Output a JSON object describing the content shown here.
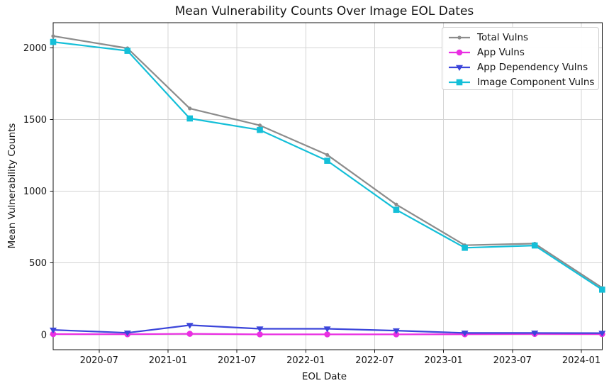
{
  "figure": {
    "title": "Mean Vulnerability Counts Over Image EOL Dates",
    "xlabel": "EOL Date",
    "ylabel": "Mean Vulnerability Counts"
  },
  "chart_data": {
    "type": "line",
    "title": "Mean Vulnerability Counts Over Image EOL Dates",
    "xlabel": "EOL Date",
    "ylabel": "Mean Vulnerability Counts",
    "x": [
      "2020-03",
      "2020-09",
      "2021-03",
      "2021-09",
      "2022-03",
      "2022-09",
      "2023-03",
      "2023-09",
      "2024-02"
    ],
    "x_months_since_2020_01": [
      2.0,
      8.47,
      13.9,
      20.0,
      25.87,
      31.88,
      37.85,
      43.94,
      49.81
    ],
    "series": [
      {
        "name": "Total Vulns",
        "color": "#8c8c8c",
        "marker": "dot",
        "values": [
          2083,
          1998,
          1578,
          1460,
          1254,
          908,
          624,
          635,
          327
        ]
      },
      {
        "name": "App Vulns",
        "color": "#ea2fe2",
        "marker": "circle",
        "values": [
          4,
          3,
          6,
          2,
          2,
          2,
          3,
          5,
          4
        ]
      },
      {
        "name": "App Dependency Vulns",
        "color": "#3b45da",
        "marker": "triangle-down",
        "values": [
          33,
          13,
          66,
          41,
          41,
          28,
          12,
          12,
          11
        ]
      },
      {
        "name": "Image Component Vulns",
        "color": "#14bfd8",
        "marker": "square",
        "values": [
          2042,
          1980,
          1508,
          1428,
          1213,
          871,
          606,
          622,
          314
        ]
      }
    ],
    "x_tick_labels": [
      "2020-07",
      "2021-01",
      "2021-07",
      "2022-01",
      "2022-07",
      "2023-01",
      "2023-07",
      "2024-01"
    ],
    "x_tick_months": [
      6,
      12,
      18,
      24,
      30,
      36,
      42,
      48
    ],
    "y_ticks": [
      0,
      500,
      1000,
      1500,
      2000
    ],
    "xlim_months": [
      2.0,
      49.81
    ],
    "ylim": [
      -105,
      2176
    ],
    "grid": true,
    "legend_position": "upper-right"
  },
  "style": {
    "grid_color": "#d4d4d4",
    "spine_color": "#141414",
    "tick_color": "#141414",
    "text_color": "#141414",
    "background": "#ffffff"
  }
}
